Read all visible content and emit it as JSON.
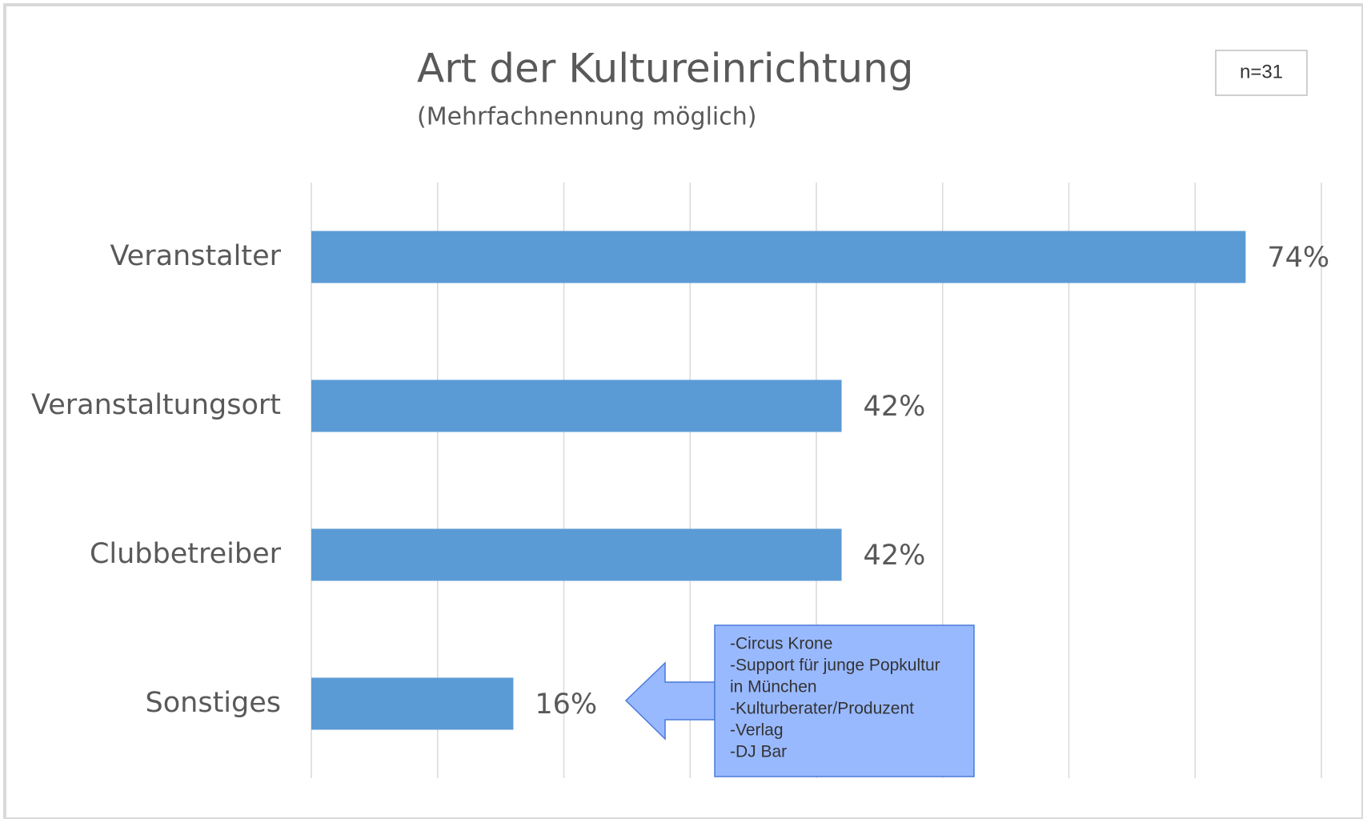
{
  "chart_data": {
    "type": "bar",
    "orientation": "horizontal",
    "title": "Art der Kultureinrichtung",
    "subtitle": "(Mehrfachnennung möglich)",
    "categories": [
      "Veranstalter",
      "Veranstaltungsort",
      "Clubbetreiber",
      "Sonstiges"
    ],
    "values": [
      74,
      42,
      42,
      16
    ],
    "value_labels": [
      "74%",
      "42%",
      "42%",
      "16%"
    ],
    "color": "#5b9bd5",
    "xlim": [
      0,
      80
    ],
    "xticks": [
      0,
      10,
      20,
      30,
      40,
      50,
      60,
      70,
      80
    ],
    "grid": true,
    "note": "n=31",
    "annotation": [
      "-Circus Krone",
      "-Support für junge Popkultur",
      "in München",
      "-Kulturberater/Produzent",
      "-Verlag",
      "-DJ Bar"
    ]
  }
}
